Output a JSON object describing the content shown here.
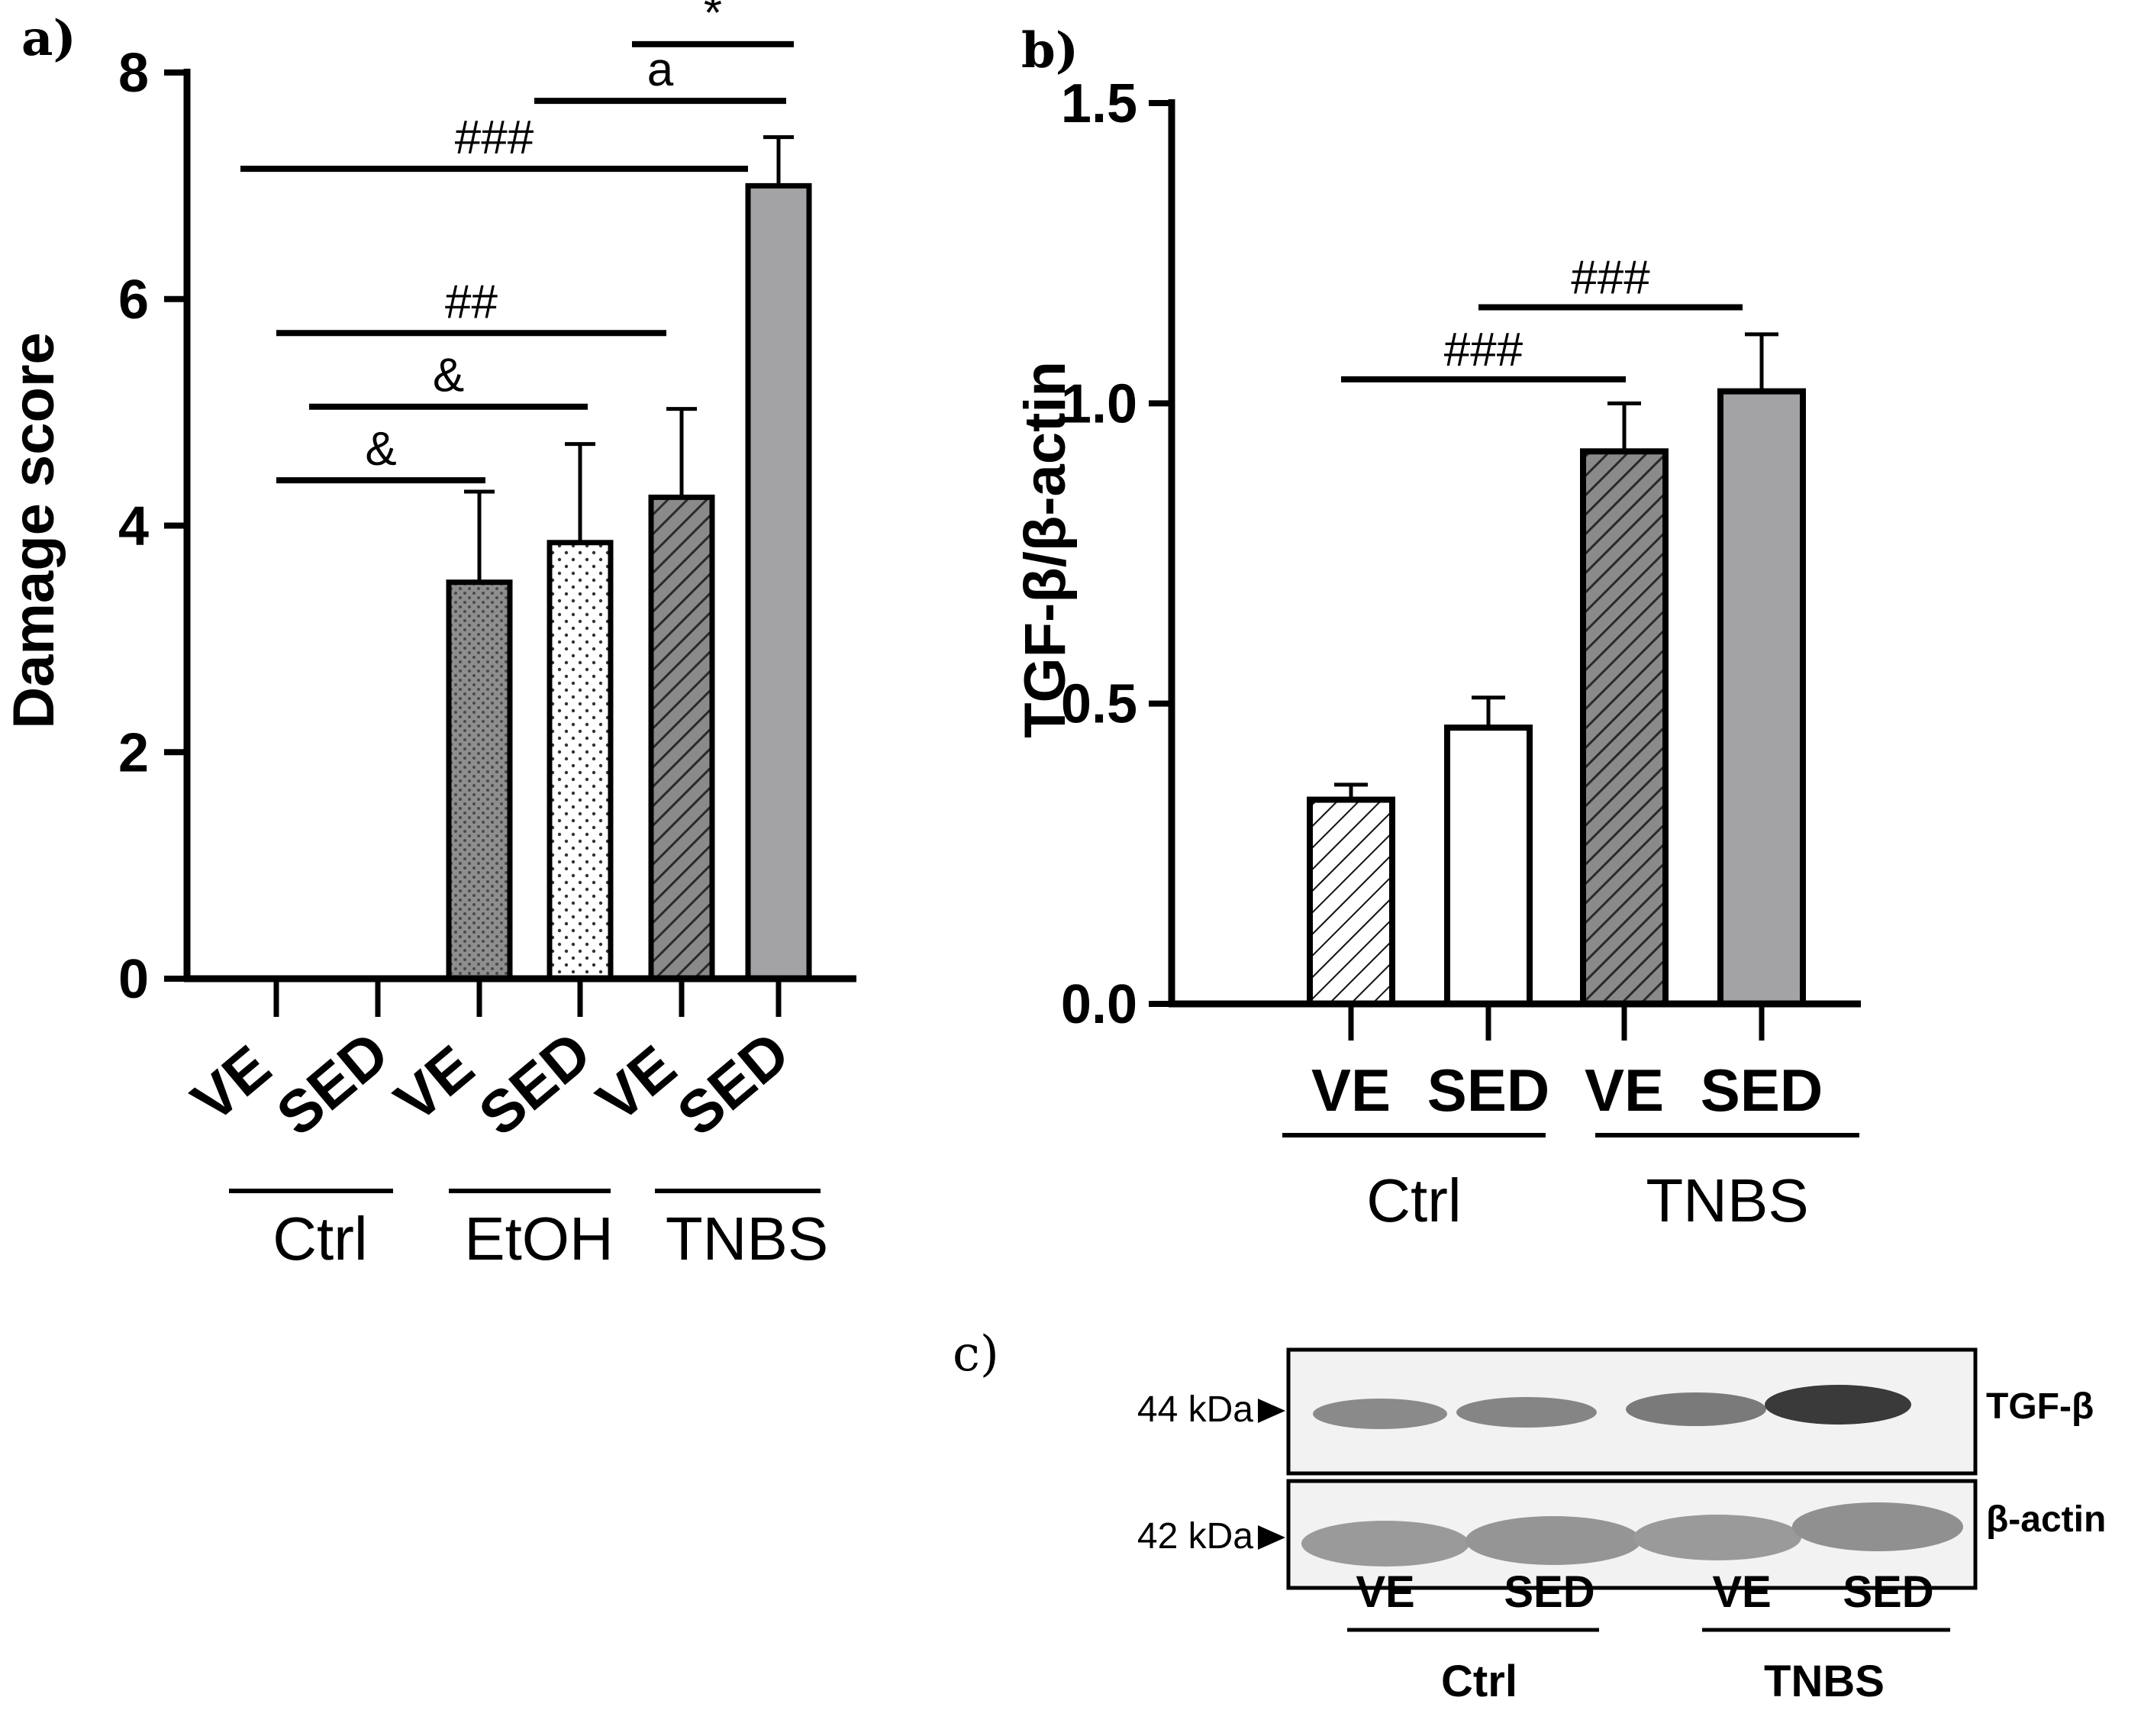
{
  "chart_data": [
    {
      "panel": "a)",
      "type": "bar",
      "ylabel": "Damage score",
      "ylim": [
        0,
        8
      ],
      "yticks": [
        "0",
        "2",
        "4",
        "6",
        "8"
      ],
      "categories": [
        "VE",
        "SED",
        "VE",
        "SED",
        "VE",
        "SED"
      ],
      "groups": [
        "Ctrl",
        "EtOH",
        "TNBS"
      ],
      "values": [
        0,
        0,
        3.5,
        3.85,
        4.25,
        7.0
      ],
      "errors": [
        0,
        0,
        0.8,
        0.87,
        0.78,
        0.43
      ],
      "significance": [
        {
          "label": "&",
          "from": 0,
          "to": 2,
          "y": 4.4
        },
        {
          "label": "&",
          "from": 1,
          "to": 3,
          "y": 5.05
        },
        {
          "label": "##",
          "from": 0,
          "to": 4,
          "y": 5.7
        },
        {
          "label": "###",
          "from": 1,
          "to": 5,
          "y": 7.15
        },
        {
          "label": "a",
          "from": 3,
          "to": 5,
          "y": 7.75
        },
        {
          "label": "*",
          "from": 4,
          "to": 5,
          "y": 8.25
        }
      ]
    },
    {
      "panel": "b)",
      "type": "bar",
      "ylabel": "TGF-β/β-actin",
      "ylim": [
        0,
        1.5
      ],
      "yticks": [
        "0.0",
        "0.5",
        "1.0",
        "1.5"
      ],
      "categories": [
        "VE",
        "SED",
        "VE",
        "SED"
      ],
      "groups": [
        "Ctrl",
        "TNBS"
      ],
      "values": [
        0.34,
        0.46,
        0.92,
        1.02
      ],
      "errors": [
        0.025,
        0.05,
        0.08,
        0.095
      ],
      "significance": [
        {
          "label": "###",
          "from": 0,
          "to": 2,
          "y": 1.04
        },
        {
          "label": "###",
          "from": 1,
          "to": 3,
          "y": 1.16
        }
      ]
    }
  ],
  "blot": {
    "panel": "c)",
    "rows": [
      {
        "kda": "44 kDa",
        "protein": "TGF-β"
      },
      {
        "kda": "42 kDa",
        "protein": "β-actin"
      }
    ],
    "lanes": [
      "VE",
      "SED",
      "VE",
      "SED"
    ],
    "groups": [
      "Ctrl",
      "TNBS"
    ]
  }
}
